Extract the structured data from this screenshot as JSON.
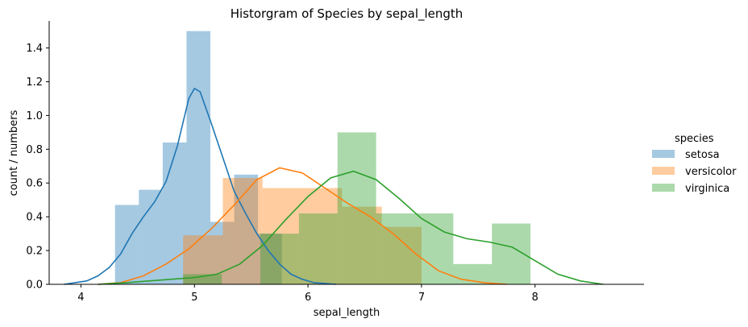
{
  "chart_data": {
    "type": "histogram",
    "title": "Historgram of Species by sepal_length",
    "xlabel": "sepal_length",
    "ylabel": "count / numbers",
    "xlim": [
      3.72,
      8.96
    ],
    "ylim": [
      0,
      1.56
    ],
    "x_ticks": [
      "4",
      "5",
      "6",
      "7",
      "8"
    ],
    "y_ticks": [
      "0.0",
      "0.2",
      "0.4",
      "0.6",
      "0.8",
      "1.0",
      "1.2",
      "1.4"
    ],
    "grid": false,
    "legend_position": "right",
    "legend": {
      "title": "species",
      "entries": [
        "setosa",
        "versicolor",
        "virginica"
      ]
    },
    "series": [
      {
        "name": "setosa",
        "color": "#1f77b4",
        "bins": [
          {
            "x0": 4.3,
            "x1": 4.51,
            "y": 0.47
          },
          {
            "x0": 4.51,
            "x1": 4.72,
            "y": 0.56
          },
          {
            "x0": 4.72,
            "x1": 4.93,
            "y": 0.84
          },
          {
            "x0": 4.93,
            "x1": 5.14,
            "y": 1.5
          },
          {
            "x0": 5.14,
            "x1": 5.35,
            "y": 0.37
          },
          {
            "x0": 5.35,
            "x1": 5.56,
            "y": 0.65
          },
          {
            "x0": 5.56,
            "x1": 5.77,
            "y": 0.3
          }
        ],
        "kde": [
          [
            3.85,
            0.0
          ],
          [
            3.95,
            0.01
          ],
          [
            4.05,
            0.02
          ],
          [
            4.15,
            0.05
          ],
          [
            4.25,
            0.1
          ],
          [
            4.35,
            0.18
          ],
          [
            4.45,
            0.3
          ],
          [
            4.55,
            0.4
          ],
          [
            4.65,
            0.49
          ],
          [
            4.75,
            0.61
          ],
          [
            4.85,
            0.82
          ],
          [
            4.95,
            1.1
          ],
          [
            5.0,
            1.16
          ],
          [
            5.05,
            1.14
          ],
          [
            5.15,
            0.95
          ],
          [
            5.25,
            0.75
          ],
          [
            5.35,
            0.55
          ],
          [
            5.45,
            0.42
          ],
          [
            5.55,
            0.3
          ],
          [
            5.65,
            0.2
          ],
          [
            5.75,
            0.12
          ],
          [
            5.85,
            0.06
          ],
          [
            5.95,
            0.03
          ],
          [
            6.05,
            0.01
          ],
          [
            6.25,
            0.0
          ]
        ]
      },
      {
        "name": "versicolor",
        "color": "#ff7f0e",
        "bins": [
          {
            "x0": 4.9,
            "x1": 5.25,
            "y": 0.29
          },
          {
            "x0": 5.25,
            "x1": 5.6,
            "y": 0.63
          },
          {
            "x0": 5.6,
            "x1": 5.95,
            "y": 0.57
          },
          {
            "x0": 5.95,
            "x1": 6.3,
            "y": 0.57
          },
          {
            "x0": 6.3,
            "x1": 6.65,
            "y": 0.46
          },
          {
            "x0": 6.65,
            "x1": 7.0,
            "y": 0.34
          }
        ],
        "kde": [
          [
            4.15,
            0.0
          ],
          [
            4.35,
            0.01
          ],
          [
            4.55,
            0.05
          ],
          [
            4.75,
            0.12
          ],
          [
            4.95,
            0.21
          ],
          [
            5.15,
            0.33
          ],
          [
            5.35,
            0.47
          ],
          [
            5.55,
            0.62
          ],
          [
            5.75,
            0.69
          ],
          [
            5.95,
            0.66
          ],
          [
            6.15,
            0.57
          ],
          [
            6.35,
            0.48
          ],
          [
            6.55,
            0.4
          ],
          [
            6.75,
            0.3
          ],
          [
            6.95,
            0.18
          ],
          [
            7.15,
            0.08
          ],
          [
            7.35,
            0.03
          ],
          [
            7.55,
            0.01
          ],
          [
            7.75,
            0.0
          ]
        ]
      },
      {
        "name": "virginica",
        "color": "#2ca02c",
        "bins": [
          {
            "x0": 4.9,
            "x1": 5.24,
            "y": 0.06
          },
          {
            "x0": 5.58,
            "x1": 5.92,
            "y": 0.3
          },
          {
            "x0": 5.92,
            "x1": 6.26,
            "y": 0.42
          },
          {
            "x0": 6.26,
            "x1": 6.6,
            "y": 0.9
          },
          {
            "x0": 6.6,
            "x1": 6.94,
            "y": 0.42
          },
          {
            "x0": 6.94,
            "x1": 7.28,
            "y": 0.42
          },
          {
            "x0": 7.28,
            "x1": 7.62,
            "y": 0.12
          },
          {
            "x0": 7.62,
            "x1": 7.96,
            "y": 0.36
          }
        ],
        "kde": [
          [
            4.15,
            0.0
          ],
          [
            4.4,
            0.01
          ],
          [
            4.6,
            0.02
          ],
          [
            4.8,
            0.03
          ],
          [
            5.0,
            0.04
          ],
          [
            5.2,
            0.06
          ],
          [
            5.4,
            0.12
          ],
          [
            5.6,
            0.23
          ],
          [
            5.8,
            0.38
          ],
          [
            6.0,
            0.52
          ],
          [
            6.2,
            0.63
          ],
          [
            6.4,
            0.67
          ],
          [
            6.6,
            0.62
          ],
          [
            6.8,
            0.51
          ],
          [
            7.0,
            0.39
          ],
          [
            7.2,
            0.31
          ],
          [
            7.4,
            0.27
          ],
          [
            7.6,
            0.25
          ],
          [
            7.8,
            0.22
          ],
          [
            8.0,
            0.14
          ],
          [
            8.2,
            0.06
          ],
          [
            8.4,
            0.02
          ],
          [
            8.6,
            0.0
          ]
        ]
      }
    ]
  }
}
